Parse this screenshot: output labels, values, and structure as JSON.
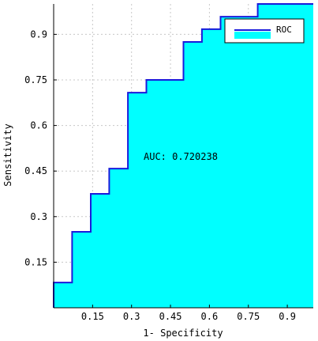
{
  "chart_data": {
    "type": "area",
    "xlabel": "1- Specificity",
    "ylabel": "Sensitivity",
    "xlim": [
      0,
      1
    ],
    "ylim": [
      0,
      1
    ],
    "x_ticks": [
      0.15,
      0.3,
      0.45,
      0.6,
      0.75,
      0.9
    ],
    "x_tick_labels": [
      "0.15",
      "0.3",
      "0.45",
      "0.6",
      "0.75",
      "0.9"
    ],
    "y_ticks": [
      0.15,
      0.3,
      0.45,
      0.6,
      0.75,
      0.9
    ],
    "y_tick_labels": [
      "0.15",
      "0.3",
      "0.45",
      "0.6",
      "0.75",
      "0.9"
    ],
    "grid": true,
    "legend_position": "top-right",
    "series": [
      {
        "name": "ROC",
        "x": [
          0,
          0,
          0.071,
          0.071,
          0.143,
          0.143,
          0.214,
          0.214,
          0.286,
          0.286,
          0.357,
          0.357,
          0.5,
          0.5,
          0.571,
          0.571,
          0.643,
          0.643,
          0.786,
          0.786,
          1
        ],
        "y": [
          0,
          0.083,
          0.083,
          0.25,
          0.25,
          0.375,
          0.375,
          0.458,
          0.458,
          0.708,
          0.708,
          0.75,
          0.75,
          0.875,
          0.875,
          0.917,
          0.917,
          0.958,
          0.958,
          1,
          1
        ]
      }
    ],
    "annotation": "AUC: 0.720238",
    "colors": {
      "line": "#1a1adb",
      "fill": "#00ffff",
      "grid": "#c8c8c8",
      "axis": "#000000"
    }
  }
}
